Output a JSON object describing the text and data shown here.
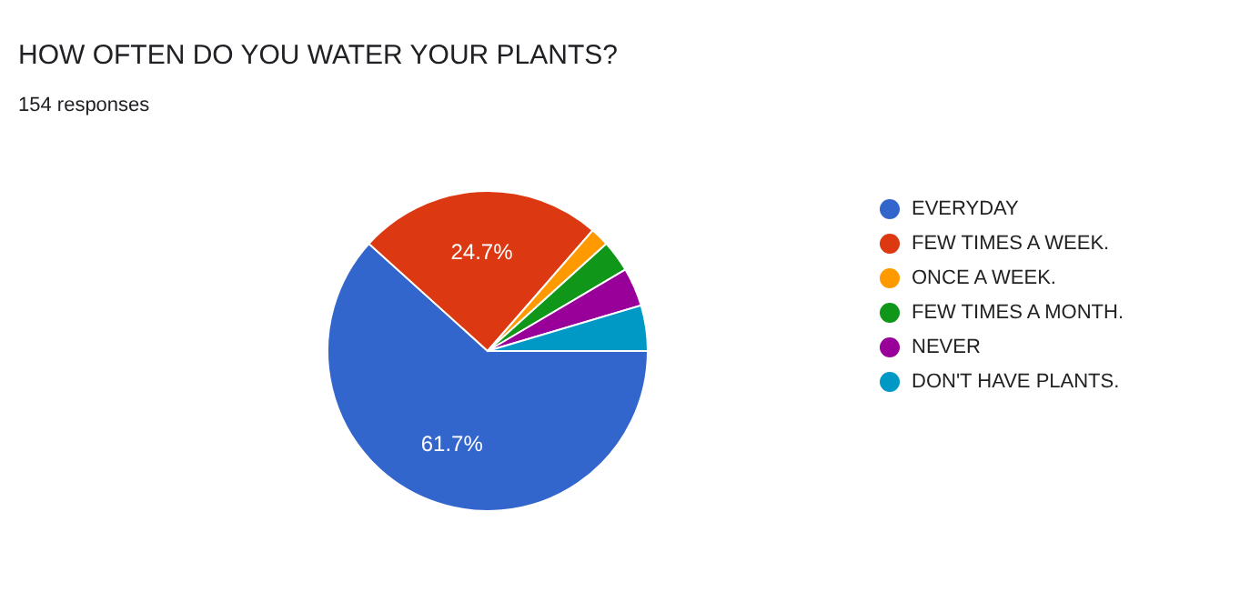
{
  "chart_data": {
    "type": "pie",
    "title": "HOW OFTEN DO YOU WATER YOUR PLANTS?",
    "subtitle": "154 responses",
    "categories": [
      "EVERYDAY",
      "FEW TIMES A WEEK.",
      "ONCE A WEEK.",
      "FEW TIMES A MONTH.",
      "NEVER",
      "DON'T HAVE PLANTS."
    ],
    "values": [
      61.7,
      24.7,
      1.9,
      3.2,
      3.9,
      4.6
    ],
    "colors": [
      "#3366cc",
      "#dc3912",
      "#ff9900",
      "#109618",
      "#990099",
      "#0099c6"
    ],
    "value_labels": [
      "61.7%",
      "24.7%",
      null,
      null,
      null,
      null
    ],
    "legend": "right"
  }
}
